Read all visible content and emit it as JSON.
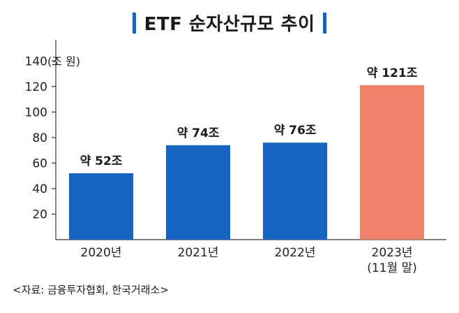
{
  "header": {
    "title": "ETF 순자산규모 추이"
  },
  "source": "<자료: 금융투자협회, 한국거래소>",
  "colors": {
    "bar_primary": "#1565c0",
    "bar_highlight": "#f0826a",
    "title_bar": "#1565c0"
  },
  "chart_data": {
    "type": "bar",
    "title": "ETF 순자산규모 추이",
    "unit_label": "(조 원)",
    "categories": [
      "2020년",
      "2021년",
      "2022년",
      "2023년"
    ],
    "category_sublabels": [
      "",
      "",
      "",
      "(11월 말)"
    ],
    "values": [
      52,
      74,
      76,
      121
    ],
    "data_labels": [
      "약 52조",
      "약 74조",
      "약 76조",
      "약 121조"
    ],
    "highlight_index": 3,
    "ylim": [
      0,
      150
    ],
    "yticks": [
      20,
      40,
      60,
      80,
      100,
      120,
      140
    ],
    "grid": false
  }
}
